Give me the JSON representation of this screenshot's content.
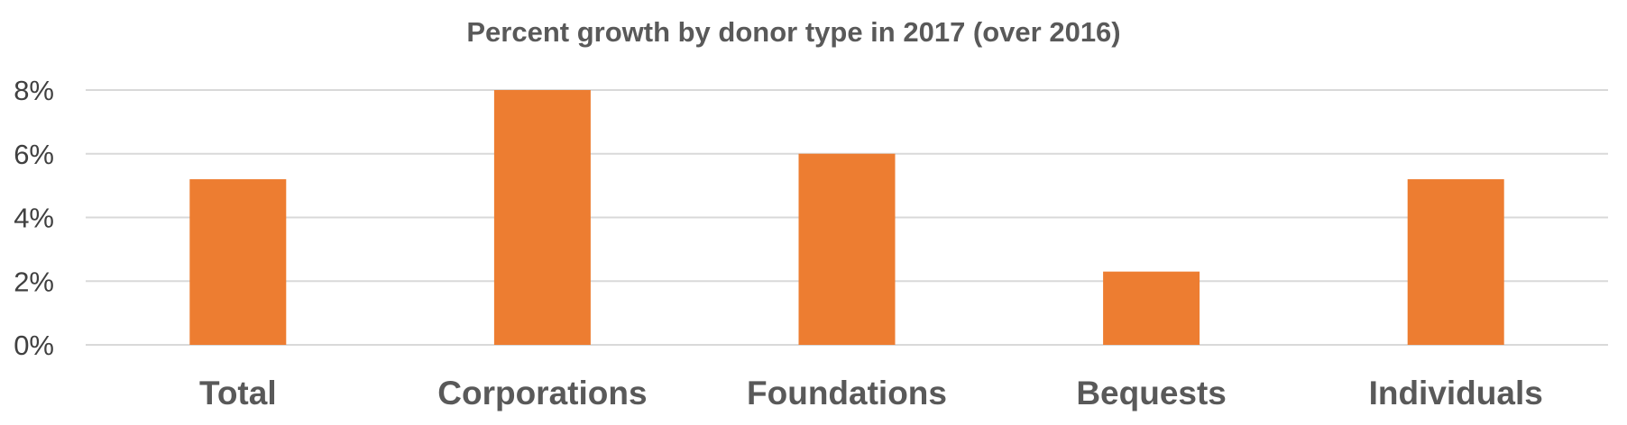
{
  "chart_data": {
    "type": "bar",
    "title": "Percent growth by donor type in 2017 (over 2016)",
    "xlabel": "",
    "ylabel": "",
    "categories": [
      "Total",
      "Corporations",
      "Foundations",
      "Bequests",
      "Individuals"
    ],
    "values": [
      5.2,
      8.0,
      6.0,
      2.3,
      5.2
    ],
    "unit": "%",
    "ylim": [
      0,
      8
    ],
    "yticks": [
      0,
      2,
      4,
      6,
      8
    ],
    "ytick_labels": [
      "0%",
      "2%",
      "4%",
      "6%",
      "8%"
    ],
    "grid": true,
    "legend": "none",
    "bar_color": "#ED7D31"
  }
}
